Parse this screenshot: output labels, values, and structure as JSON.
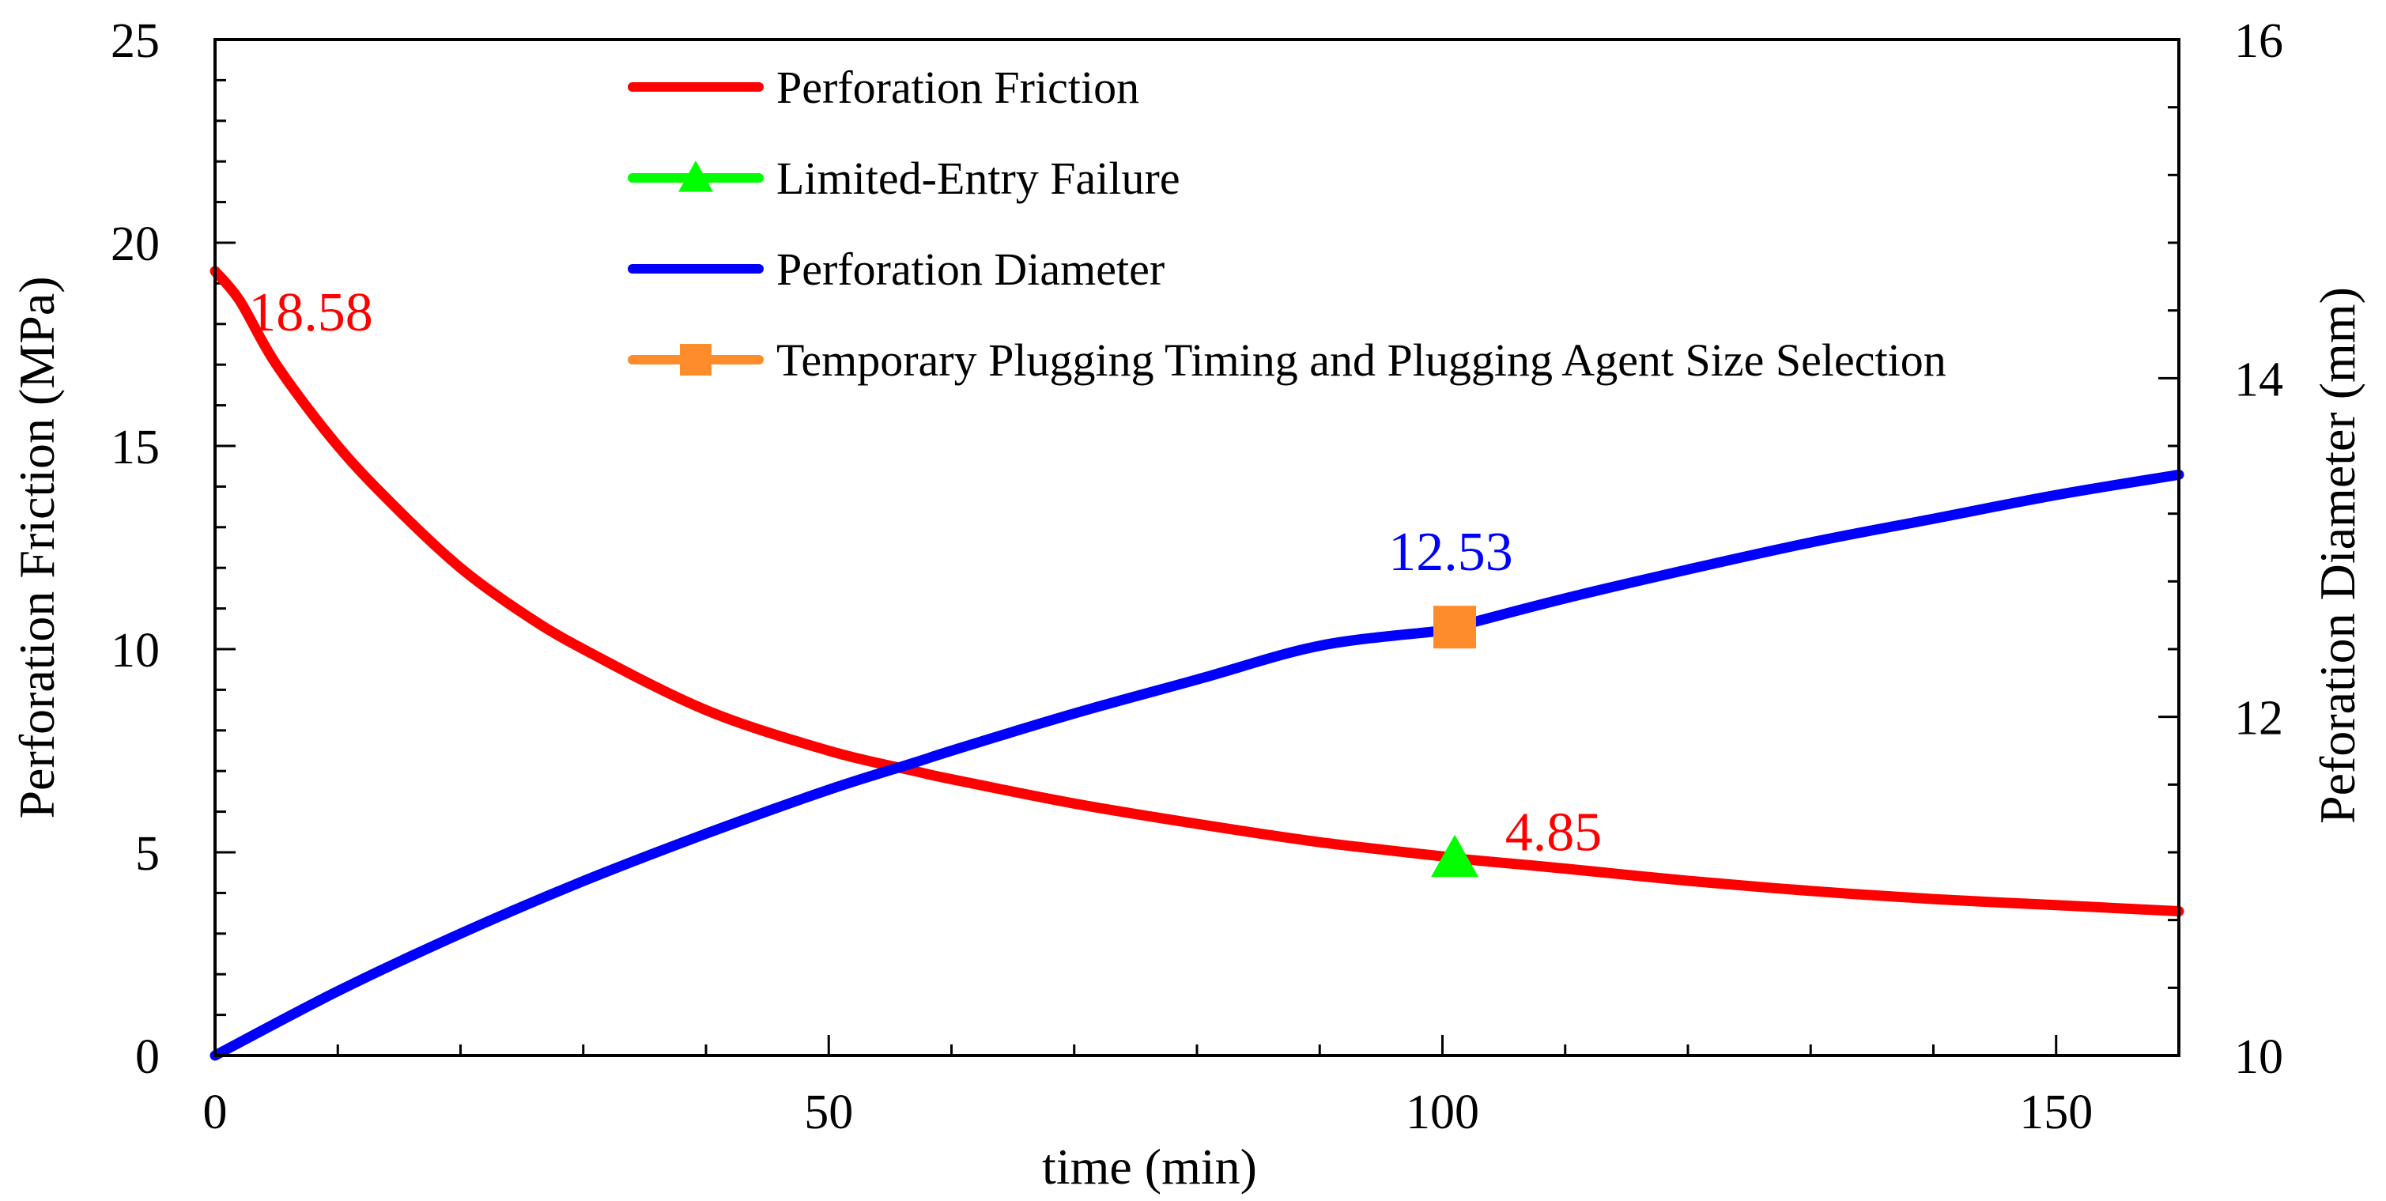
{
  "chart_data": {
    "type": "line",
    "title": "",
    "xlabel": "time (min)",
    "ylabel_left": "Perforation Friction (MPa)",
    "ylabel_right": "Peforation Diameter (mm)",
    "xlim": [
      0,
      160
    ],
    "ylim_left": [
      0,
      25
    ],
    "ylim_right": [
      10,
      16
    ],
    "x_ticks": [
      "0",
      "50",
      "100",
      "150"
    ],
    "y_left_ticks": [
      "0",
      "5",
      "10",
      "15",
      "20",
      "25"
    ],
    "y_right_ticks": [
      "10",
      "12",
      "14",
      "16"
    ],
    "grid": false,
    "legend_position": "top-center",
    "colors": {
      "friction": "#ff0000",
      "failure": "#00ff00",
      "diameter": "#0000ff",
      "plugging": "#ff8c2a"
    },
    "series": [
      {
        "name": "Perforation Friction",
        "axis": "left",
        "x": [
          0,
          2,
          5,
          10,
          15,
          20,
          25,
          30,
          40,
          50,
          57,
          60,
          70,
          80,
          90,
          100,
          101,
          110,
          120,
          130,
          140,
          150,
          160
        ],
        "values": [
          19.3,
          18.58,
          17.0,
          15.0,
          13.4,
          12.0,
          10.9,
          10.0,
          8.5,
          7.5,
          7.0,
          6.8,
          6.2,
          5.7,
          5.25,
          4.9,
          4.85,
          4.6,
          4.3,
          4.05,
          3.85,
          3.7,
          3.55
        ]
      },
      {
        "name": "Perforation Diameter",
        "axis": "right",
        "x": [
          0,
          10,
          20,
          30,
          40,
          50,
          57,
          60,
          70,
          80,
          90,
          100,
          101,
          110,
          120,
          130,
          140,
          150,
          160
        ],
        "values": [
          10.0,
          10.38,
          10.72,
          11.03,
          11.31,
          11.57,
          11.73,
          11.8,
          12.02,
          12.22,
          12.42,
          12.51,
          12.53,
          12.7,
          12.87,
          13.03,
          13.17,
          13.31,
          13.43
        ]
      }
    ],
    "markers": [
      {
        "name": "Limited-Entry Failure",
        "axis": "left",
        "x": 101,
        "y": 4.85,
        "shape": "triangle"
      },
      {
        "name": "Temporary Plugging Timing and Plugging Agent Size Selection",
        "axis": "right",
        "x": 101,
        "y": 12.53,
        "shape": "square"
      }
    ],
    "annotations": [
      {
        "text": "18.58",
        "series": "Perforation Friction",
        "x": 2,
        "y": 18.58
      },
      {
        "text": "4.85",
        "series": "Perforation Friction",
        "x": 101,
        "y": 4.85
      },
      {
        "text": "12.53",
        "series": "Perforation Diameter",
        "x": 101,
        "y": 12.53
      }
    ],
    "legend": [
      {
        "label": "Perforation Friction",
        "color_key": "friction",
        "marker": "none"
      },
      {
        "label": "Limited-Entry Failure",
        "color_key": "failure",
        "marker": "triangle"
      },
      {
        "label": "Perforation Diameter",
        "color_key": "diameter",
        "marker": "none"
      },
      {
        "label": "Temporary Plugging Timing and Plugging Agent Size Selection",
        "color_key": "plugging",
        "marker": "square"
      }
    ]
  }
}
